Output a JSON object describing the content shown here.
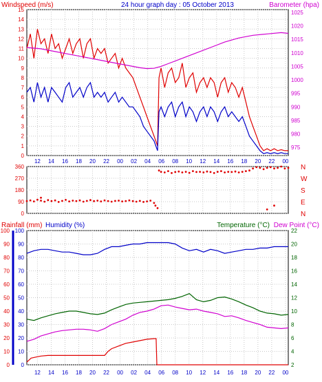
{
  "header": {
    "left_title": "Windspeed (m/s)",
    "center_title": "24 hour graph day : 05 October 2013",
    "right_title": "Barometer (hpa)"
  },
  "colors": {
    "red": "#e00000",
    "blue": "#0000c8",
    "magenta": "#d000d0",
    "green": "#006400",
    "grid": "#c8c8c8",
    "axis": "#000000"
  },
  "time_ticks": [
    "12",
    "14",
    "16",
    "18",
    "20",
    "22",
    "00",
    "02",
    "04",
    "06",
    "08",
    "10",
    "12",
    "14",
    "16",
    "18",
    "20",
    "22",
    "00"
  ],
  "chart_data": [
    {
      "type": "line",
      "panel": "wind-barometer",
      "y_left": {
        "label": "Windspeed (m/s)",
        "ticks": [
          0,
          1,
          2,
          3,
          4,
          5,
          6,
          7,
          8,
          9,
          10,
          11,
          12,
          13,
          14,
          15
        ],
        "lim": [
          0,
          15
        ]
      },
      "y_right": {
        "label": "Barometer (hpa)",
        "ticks": [
          975,
          980,
          985,
          990,
          995,
          1000,
          1005,
          1010,
          1015,
          1020,
          1025
        ],
        "lim": [
          972,
          1026
        ]
      },
      "series": [
        {
          "id": "gust",
          "color": "#e00000",
          "axis": "left",
          "x": [
            0,
            0.5,
            1,
            1.5,
            2,
            2.5,
            3,
            3.5,
            4,
            4.5,
            5,
            5.5,
            6,
            6.5,
            7,
            7.5,
            8,
            8.5,
            9,
            9.5,
            10,
            10.5,
            11,
            11.5,
            12,
            12.5,
            13,
            13.5,
            14,
            14.5,
            15,
            15.5,
            16,
            16.5,
            17,
            17.5,
            18,
            18.5,
            18.7,
            19,
            19.5,
            20,
            20.5,
            21,
            21.5,
            22,
            22.5,
            23,
            23.5,
            24,
            24.5,
            25,
            25.5,
            26,
            26.5,
            27,
            27.5,
            28,
            28.5,
            29,
            29.5,
            30,
            30.5,
            31,
            31.5,
            32,
            32.5,
            33,
            33.5,
            34,
            34.5,
            35,
            35.5,
            36,
            36.5,
            37
          ],
          "y": [
            11,
            12.5,
            10,
            13,
            11.5,
            12,
            10.5,
            12.5,
            11,
            11.5,
            10,
            11,
            12,
            10.5,
            11.5,
            12,
            10,
            11.5,
            12,
            10,
            11,
            10.5,
            11,
            9.5,
            10,
            10.5,
            9,
            10,
            9,
            8.5,
            8,
            7,
            6,
            5,
            4,
            3,
            2,
            1,
            8,
            9,
            7,
            8.5,
            9,
            7.5,
            8,
            9.5,
            7,
            8,
            8.5,
            6.5,
            7.5,
            8,
            7,
            8,
            7.5,
            6,
            7.5,
            8,
            6.5,
            7.5,
            7,
            6,
            7,
            5.5,
            4,
            3,
            2,
            1,
            0.5,
            0.7,
            0.5,
            0.7,
            0.5,
            0.6,
            0.5,
            0.5
          ]
        },
        {
          "id": "average",
          "color": "#0000c8",
          "axis": "left",
          "x": [
            0,
            0.5,
            1,
            1.5,
            2,
            2.5,
            3,
            3.5,
            4,
            4.5,
            5,
            5.5,
            6,
            6.5,
            7,
            7.5,
            8,
            8.5,
            9,
            9.5,
            10,
            10.5,
            11,
            11.5,
            12,
            12.5,
            13,
            13.5,
            14,
            14.5,
            15,
            15.5,
            16,
            16.5,
            17,
            17.5,
            18,
            18.5,
            18.7,
            19,
            19.5,
            20,
            20.5,
            21,
            21.5,
            22,
            22.5,
            23,
            23.5,
            24,
            24.5,
            25,
            25.5,
            26,
            26.5,
            27,
            27.5,
            28,
            28.5,
            29,
            29.5,
            30,
            30.5,
            31,
            31.5,
            32,
            32.5,
            33,
            33.5,
            34,
            34.5,
            35,
            35.5,
            36,
            36.5,
            37
          ],
          "y": [
            6.5,
            7,
            5.5,
            7.5,
            6,
            7,
            5.5,
            7,
            6.5,
            6,
            5.5,
            7,
            7.5,
            6,
            6.5,
            7,
            6,
            7,
            7.5,
            6,
            6.5,
            6,
            6.5,
            5.5,
            6,
            6.5,
            5.5,
            6,
            5.5,
            5,
            5,
            4.5,
            4,
            3,
            2.5,
            2,
            1.5,
            0.5,
            4.5,
            5,
            4,
            5,
            5.5,
            4,
            5,
            5.5,
            4,
            5,
            4.5,
            3.5,
            4.5,
            5,
            4,
            5,
            4.5,
            3.5,
            4.5,
            5,
            4,
            4.5,
            4,
            3.5,
            4,
            3,
            2,
            1.5,
            1,
            0.5,
            0.2,
            0.3,
            0.2,
            0.3,
            0.2,
            0.3,
            0.2,
            0.2
          ]
        },
        {
          "id": "barometer",
          "color": "#d000d0",
          "axis": "right",
          "x": [
            0,
            2,
            4,
            6,
            8,
            10,
            12,
            14,
            16,
            17,
            18,
            19,
            20,
            22,
            24,
            26,
            28,
            30,
            32,
            34,
            36,
            37
          ],
          "y": [
            1012,
            1011.5,
            1010.5,
            1009.5,
            1008.5,
            1007.5,
            1006.5,
            1005.5,
            1004.5,
            1004.2,
            1004.3,
            1005,
            1006,
            1008,
            1010,
            1012,
            1014,
            1015.5,
            1016.5,
            1017,
            1017.5,
            1017.2
          ]
        }
      ]
    },
    {
      "type": "scatter",
      "panel": "wind-direction",
      "y_left": {
        "ticks": [
          0,
          90,
          180,
          270,
          360
        ],
        "lim": [
          0,
          360
        ]
      },
      "y_right": {
        "ticks": [
          "N",
          "W",
          "S",
          "E",
          "N"
        ]
      },
      "series": [
        {
          "id": "direction",
          "color": "#e00000",
          "x": [
            0,
            0.5,
            1,
            1.5,
            2,
            2.5,
            3,
            3.5,
            4,
            4.5,
            5,
            5.5,
            6,
            6.5,
            7,
            7.5,
            8,
            8.5,
            9,
            9.5,
            10,
            10.5,
            11,
            11.5,
            12,
            12.5,
            13,
            13.5,
            14,
            14.5,
            15,
            15.5,
            16,
            16.5,
            17,
            17.5,
            18,
            18.2,
            18.5,
            18.7,
            19,
            19.5,
            20,
            20.5,
            21,
            21.5,
            22,
            22.5,
            23,
            23.5,
            24,
            24.5,
            25,
            25.5,
            26,
            26.5,
            27,
            27.5,
            28,
            28.5,
            29,
            29.5,
            30,
            30.5,
            31,
            31.5,
            32,
            32.5,
            33,
            33.5,
            34,
            34.5,
            35,
            35.5,
            36,
            36.5,
            37,
            2,
            34,
            35
          ],
          "y": [
            95,
            100,
            92,
            105,
            98,
            90,
            102,
            95,
            100,
            88,
            96,
            104,
            92,
            98,
            95,
            100,
            90,
            96,
            102,
            94,
            98,
            92,
            100,
            95,
            90,
            96,
            98,
            92,
            95,
            100,
            94,
            90,
            96,
            88,
            92,
            98,
            80,
            60,
            40,
            330,
            320,
            315,
            325,
            310,
            318,
            322,
            315,
            320,
            312,
            325,
            318,
            320,
            315,
            322,
            318,
            310,
            320,
            325,
            315,
            320,
            318,
            322,
            315,
            320,
            325,
            330,
            345,
            355,
            350,
            340,
            350,
            355,
            345,
            350,
            360,
            345,
            350,
            120,
            30,
            60
          ]
        }
      ]
    },
    {
      "type": "line",
      "panel": "rain-humidity-temperature",
      "y_left_rain": {
        "label": "Rainfall (mm)",
        "ticks": [
          0,
          10,
          20,
          30,
          40,
          50,
          60,
          70,
          80,
          90,
          100
        ],
        "lim": [
          0,
          100
        ]
      },
      "y_left_humidity": {
        "label": "Humidity (%)",
        "ticks": [
          0,
          10,
          20,
          30,
          40,
          50,
          60,
          70,
          80,
          90,
          100
        ],
        "lim": [
          0,
          100
        ]
      },
      "y_right": {
        "label": "Temperature (°C)",
        "label2": "Dew Point (°C)",
        "ticks": [
          2,
          4,
          6,
          8,
          10,
          12,
          14,
          16,
          18,
          20,
          22
        ],
        "lim": [
          2,
          22
        ]
      },
      "series": [
        {
          "id": "humidity",
          "color": "#0000c8",
          "axis": "humidity",
          "x": [
            0,
            1,
            2,
            3,
            4,
            5,
            6,
            7,
            8,
            9,
            10,
            11,
            12,
            13,
            14,
            15,
            16,
            17,
            18,
            19,
            20,
            21,
            22,
            23,
            24,
            25,
            26,
            27,
            28,
            29,
            30,
            31,
            32,
            33,
            34,
            35,
            36,
            37
          ],
          "y": [
            83,
            85,
            86,
            86,
            85,
            84,
            84,
            83,
            82,
            82,
            83,
            86,
            88,
            88,
            89,
            90,
            90,
            91,
            91,
            91,
            91,
            90,
            87,
            85,
            86,
            84,
            86,
            85,
            83,
            84,
            85,
            86,
            86,
            87,
            87,
            88,
            88,
            88
          ]
        },
        {
          "id": "temperature",
          "color": "#006400",
          "axis": "right",
          "x": [
            0,
            1,
            2,
            3,
            4,
            5,
            6,
            7,
            8,
            9,
            10,
            11,
            12,
            13,
            14,
            15,
            16,
            17,
            18,
            19,
            20,
            21,
            22,
            23,
            24,
            25,
            26,
            27,
            28,
            29,
            30,
            31,
            32,
            33,
            34,
            35,
            36,
            37
          ],
          "y": [
            8.8,
            8.6,
            9,
            9.3,
            9.6,
            9.8,
            10,
            10,
            9.8,
            9.6,
            9.5,
            9.7,
            10.2,
            10.6,
            11,
            11.2,
            11.3,
            11.4,
            11.5,
            11.6,
            11.7,
            11.9,
            12.2,
            12.6,
            11.7,
            11.4,
            11.6,
            12,
            12.1,
            11.8,
            11.4,
            10.9,
            10.5,
            10,
            9.7,
            9.6,
            9.4,
            9.5
          ]
        },
        {
          "id": "dewpoint",
          "color": "#d000d0",
          "axis": "right",
          "x": [
            0,
            1,
            2,
            3,
            4,
            5,
            6,
            7,
            8,
            9,
            10,
            11,
            12,
            13,
            14,
            15,
            16,
            17,
            18,
            19,
            20,
            21,
            22,
            23,
            24,
            25,
            26,
            27,
            28,
            29,
            30,
            31,
            32,
            33,
            34,
            35,
            36,
            37
          ],
          "y": [
            5.5,
            5.8,
            6.3,
            6.6,
            6.9,
            7.1,
            7.2,
            7.3,
            7.3,
            7.2,
            7,
            7.4,
            8,
            8.4,
            8.8,
            9.4,
            9.8,
            10,
            10.3,
            10.8,
            10.9,
            10.6,
            10.4,
            10.2,
            10.3,
            10,
            9.8,
            9.6,
            9.2,
            9.3,
            9,
            8.6,
            8.3,
            8,
            7.6,
            7.5,
            7.4,
            7.5
          ]
        },
        {
          "id": "rainfall",
          "color": "#e00000",
          "axis": "rain",
          "x": [
            0,
            0.6,
            1.5,
            2,
            3,
            4,
            5,
            6,
            7,
            8,
            9,
            10,
            11,
            11.5,
            12,
            13,
            14,
            15,
            16,
            17,
            18,
            18.3,
            18.4,
            19,
            20,
            24,
            28,
            32,
            37
          ],
          "y": [
            2,
            5,
            6,
            6.5,
            7,
            7,
            7,
            7,
            7,
            7,
            7,
            7,
            7,
            10,
            12,
            14,
            16,
            17,
            18,
            19,
            19.5,
            19.5,
            0,
            0,
            0,
            0,
            0,
            0,
            0
          ]
        }
      ]
    }
  ]
}
